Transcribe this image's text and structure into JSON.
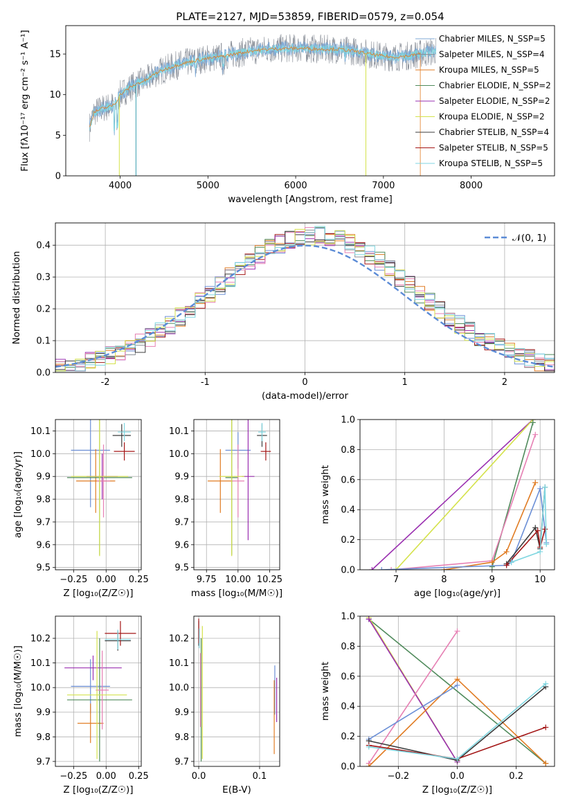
{
  "figure": {
    "title": "PLATE=2127, MJD=53859, FIBERID=0579, z=0.054"
  },
  "model_colors": {
    "Chabrier MILES": "#6b8fd6",
    "Salpeter MILES": "#8a8f98",
    "Kroupa MILES": "#e07b22",
    "Chabrier ELODIE": "#4f8a5b",
    "Salpeter ELODIE": "#9a2fb0",
    "Kroupa ELODIE": "#d4e24a",
    "Chabrier STELIB": "#3b3b3b",
    "Salpeter STELIB": "#a31515",
    "Kroupa STELIB": "#7fd6e0",
    "Pink": "#e67fb3"
  },
  "chart_data": [
    {
      "id": "spectrum",
      "type": "line",
      "title": "PLATE=2127, MJD=53859, FIBERID=0579, z=0.054",
      "xlabel": "wavelength [Angstrom, rest frame]",
      "ylabel": "Flux [fλ10⁻¹⁷ erg cm⁻² s⁻¹ A⁻¹]",
      "xlim": [
        3380,
        8950
      ],
      "ylim": [
        0,
        18.5
      ],
      "xticks": [
        4000,
        5000,
        6000,
        7000,
        8000
      ],
      "yticks": [
        0,
        5,
        10,
        15
      ],
      "grid": false,
      "legend_position": "right",
      "series": [
        {
          "name": "Chabrier MILES, N_SSP=5",
          "color": "#7fa9d6"
        },
        {
          "name": "Salpeter MILES, N_SSP=4",
          "color": "#8a8f98"
        },
        {
          "name": "Kroupa MILES, N_SSP=5",
          "color": "#e07b22"
        },
        {
          "name": "Chabrier ELODIE, N_SSP=2",
          "color": "#4f8a5b"
        },
        {
          "name": "Salpeter ELODIE, N_SSP=2",
          "color": "#9a2fb0"
        },
        {
          "name": "Kroupa ELODIE, N_SSP=2",
          "color": "#d4e24a"
        },
        {
          "name": "Chabrier STELIB, N_SSP=4",
          "color": "#3b3b3b"
        },
        {
          "name": "Salpeter STELIB, N_SSP=5",
          "color": "#a31515"
        },
        {
          "name": "Kroupa STELIB, N_SSP=5",
          "color": "#7fd6e0"
        }
      ],
      "continuum": {
        "x": [
          3650,
          3700,
          3800,
          3900,
          3950,
          4000,
          4100,
          4200,
          4300,
          4400,
          4500,
          4700,
          4900,
          5100,
          5300,
          5500,
          5700,
          5900,
          6100,
          6300,
          6500,
          6700,
          6900,
          7100,
          7300,
          7500,
          7600
        ],
        "y": [
          6.0,
          7.8,
          8.3,
          8.6,
          9.0,
          10.0,
          10.8,
          11.4,
          11.8,
          12.6,
          13.1,
          13.8,
          14.3,
          14.6,
          15.0,
          15.4,
          15.6,
          15.7,
          15.7,
          15.6,
          15.6,
          15.3,
          14.9,
          14.6,
          14.8,
          15.2,
          15.4
        ]
      }
    },
    {
      "id": "residual-hist",
      "type": "histogram",
      "xlabel": "(data-model)/error",
      "ylabel": "Normed distribution",
      "xlim": [
        -2.5,
        2.5
      ],
      "ylim": [
        0,
        0.47
      ],
      "xticks": [
        -2,
        -1,
        0,
        1,
        2
      ],
      "yticks": [
        0.0,
        0.1,
        0.2,
        0.3,
        0.4
      ],
      "grid": true,
      "legend_position": "top-right",
      "legend": [
        "𝒩(0, 1)"
      ],
      "bin_width": 0.1,
      "bin_range": [
        -2.5,
        2.5
      ],
      "histogram_colors": [
        "#6b8fd6",
        "#e07b22",
        "#4f8a5b",
        "#a31515",
        "#9a2fb0",
        "#8a8f98",
        "#e67fb3",
        "#3b3b3b",
        "#d4e24a",
        "#7fd6e0"
      ],
      "reference_curve": {
        "name": "𝒩(0, 1)",
        "mean": 0,
        "sigma": 1,
        "style": "dashed",
        "color": "#5b8bd6"
      }
    },
    {
      "id": "age-vs-Z",
      "type": "errorbar",
      "xlabel": "Z [log₁₀(Z/Z☉)]",
      "ylabel": "age  [log₁₀(age/yr)]",
      "xlim": [
        -0.39,
        0.27
      ],
      "ylim": [
        9.49,
        10.15
      ],
      "xticks": [
        -0.25,
        0.0,
        0.25
      ],
      "xticklabels": [
        "−0.25",
        "0.00",
        "0.25"
      ],
      "yticks": [
        9.5,
        9.6,
        9.7,
        9.8,
        9.9,
        10.0,
        10.1
      ],
      "grid": true,
      "points": [
        {
          "color": "#6b8fd6",
          "x": -0.12,
          "xerr": 0.15,
          "y": 10.015,
          "yerr": 0.25
        },
        {
          "color": "#e07b22",
          "x": -0.08,
          "xerr": 0.15,
          "y": 9.88,
          "yerr": 0.14
        },
        {
          "color": "#4f8a5b",
          "x": -0.05,
          "xerr": 0.25,
          "y": 9.895,
          "yerr": 0.34
        },
        {
          "color": "#9a2fb0",
          "x": -0.03,
          "xerr": 0.12,
          "y": 9.9,
          "yerr": 0.1
        },
        {
          "color": "#e67fb3",
          "x": -0.02,
          "xerr": 0.05,
          "y": 9.88,
          "yerr": 0.16
        },
        {
          "color": "#d4e24a",
          "x": -0.05,
          "xerr": 0.22,
          "y": 9.9,
          "yerr": 0.35
        },
        {
          "color": "#3b3b3b",
          "x": 0.12,
          "xerr": 0.07,
          "y": 10.08,
          "yerr": 0.05
        },
        {
          "color": "#a31515",
          "x": 0.14,
          "xerr": 0.08,
          "y": 10.01,
          "yerr": 0.04
        },
        {
          "color": "#7fd6e0",
          "x": 0.14,
          "xerr": 0.05,
          "y": 10.095,
          "yerr": 0.04
        }
      ]
    },
    {
      "id": "age-vs-mass",
      "type": "errorbar",
      "xlabel": "mass [log₁₀(M/M☉)]",
      "ylabel": "",
      "xlim": [
        9.65,
        10.33
      ],
      "ylim": [
        9.49,
        10.15
      ],
      "xticks": [
        9.75,
        10.0,
        10.25
      ],
      "xticklabels": [
        "9.75",
        "10.00",
        "10.25"
      ],
      "yticks": [
        9.5,
        9.6,
        9.7,
        9.8,
        9.9,
        10.0,
        10.1
      ],
      "grid": true,
      "points": [
        {
          "color": "#6b8fd6",
          "x": 10.0,
          "xerr": 0.1,
          "y": 10.015,
          "yerr": 0.08
        },
        {
          "color": "#e07b22",
          "x": 9.86,
          "xerr": 0.1,
          "y": 9.88,
          "yerr": 0.14
        },
        {
          "color": "#4f8a5b",
          "x": 9.95,
          "xerr": 0.05,
          "y": 9.895,
          "yerr": 0.34
        },
        {
          "color": "#9a2fb0",
          "x": 10.08,
          "xerr": 0.05,
          "y": 9.9,
          "yerr": 0.28
        },
        {
          "color": "#e67fb3",
          "x": 10.0,
          "xerr": 0.05,
          "y": 9.88,
          "yerr": 0.16
        },
        {
          "color": "#d4e24a",
          "x": 9.95,
          "xerr": 0.1,
          "y": 9.9,
          "yerr": 0.35
        },
        {
          "color": "#3b3b3b",
          "x": 10.19,
          "xerr": 0.04,
          "y": 10.08,
          "yerr": 0.05
        },
        {
          "color": "#a31515",
          "x": 10.22,
          "xerr": 0.04,
          "y": 10.01,
          "yerr": 0.04
        },
        {
          "color": "#7fd6e0",
          "x": 10.19,
          "xerr": 0.03,
          "y": 10.095,
          "yerr": 0.04
        }
      ]
    },
    {
      "id": "weight-vs-age",
      "type": "line",
      "xlabel": "age  [log₁₀(age/yr)]",
      "ylabel": "mass weight",
      "xlim": [
        6.25,
        10.3
      ],
      "ylim": [
        0,
        1.0
      ],
      "xticks": [
        7,
        8,
        9,
        10
      ],
      "yticks": [
        0.0,
        0.2,
        0.4,
        0.6,
        0.8,
        1.0
      ],
      "grid": true,
      "series": [
        {
          "color": "#9a2fb0",
          "x": [
            6.5,
            9.85
          ],
          "y": [
            0.0,
            1.0
          ]
        },
        {
          "color": "#d4e24a",
          "x": [
            7.0,
            9.85
          ],
          "y": [
            0.0,
            1.0
          ]
        },
        {
          "color": "#4f8a5b",
          "x": [
            9.0,
            9.85
          ],
          "y": [
            0.02,
            0.98
          ]
        },
        {
          "color": "#e67fb3",
          "x": [
            6.9,
            9.0,
            9.9
          ],
          "y": [
            0.0,
            0.06,
            0.9
          ]
        },
        {
          "color": "#e07b22",
          "x": [
            8.0,
            9.0,
            9.3,
            9.9
          ],
          "y": [
            0.0,
            0.05,
            0.12,
            0.58
          ]
        },
        {
          "color": "#6b8fd6",
          "x": [
            6.7,
            9.3,
            9.4,
            10.0,
            10.13
          ],
          "y": [
            0.0,
            0.03,
            0.05,
            0.54,
            0.18
          ]
        },
        {
          "color": "#3b3b3b",
          "x": [
            9.3,
            9.9,
            10.0,
            10.1
          ],
          "y": [
            0.04,
            0.28,
            0.14,
            0.55
          ]
        },
        {
          "color": "#a31515",
          "x": [
            9.3,
            9.95,
            10.0,
            10.1
          ],
          "y": [
            0.03,
            0.26,
            0.15,
            0.27
          ]
        },
        {
          "color": "#7fd6e0",
          "x": [
            9.4,
            10.0,
            10.1,
            10.13
          ],
          "y": [
            0.05,
            0.12,
            0.55,
            0.17
          ]
        }
      ]
    },
    {
      "id": "mass-vs-Z",
      "type": "errorbar",
      "xlabel": "Z [log₁₀(Z/Z☉)]",
      "ylabel": "mass [log₁₀(M/M☉)]",
      "xlim": [
        -0.39,
        0.27
      ],
      "ylim": [
        9.68,
        10.29
      ],
      "xticks": [
        -0.25,
        0.0,
        0.25
      ],
      "xticklabels": [
        "−0.25",
        "0.00",
        "0.25"
      ],
      "yticks": [
        9.7,
        9.8,
        9.9,
        10.0,
        10.1,
        10.2
      ],
      "grid": true,
      "points": [
        {
          "color": "#6b8fd6",
          "x": -0.12,
          "xerr": 0.15,
          "y": 10.005,
          "yerr": 0.11
        },
        {
          "color": "#e07b22",
          "x": -0.12,
          "xerr": 0.1,
          "y": 9.855,
          "yerr": 0.08
        },
        {
          "color": "#4f8a5b",
          "x": -0.05,
          "xerr": 0.25,
          "y": 9.95,
          "yerr": 0.25
        },
        {
          "color": "#9a2fb0",
          "x": -0.1,
          "xerr": 0.22,
          "y": 10.08,
          "yerr": 0.05
        },
        {
          "color": "#e67fb3",
          "x": -0.03,
          "xerr": 0.05,
          "y": 9.99,
          "yerr": 0.16
        },
        {
          "color": "#d4e24a",
          "x": -0.07,
          "xerr": 0.23,
          "y": 9.97,
          "yerr": 0.26
        },
        {
          "color": "#3b3b3b",
          "x": 0.09,
          "xerr": 0.1,
          "y": 10.19,
          "yerr": 0.04
        },
        {
          "color": "#a31515",
          "x": 0.11,
          "xerr": 0.12,
          "y": 10.22,
          "yerr": 0.05
        },
        {
          "color": "#7fd6e0",
          "x": 0.09,
          "xerr": 0.1,
          "y": 10.195,
          "yerr": 0.04
        }
      ]
    },
    {
      "id": "mass-vs-ebv",
      "type": "errorbar",
      "xlabel": "E(B-V)",
      "ylabel": "",
      "xlim": [
        -0.008,
        0.133
      ],
      "ylim": [
        9.68,
        10.29
      ],
      "xticks": [
        0.0,
        0.1
      ],
      "xticklabels": [
        "0.0",
        "0.1"
      ],
      "yticks": [
        9.7,
        9.8,
        9.9,
        10.0,
        10.1,
        10.2
      ],
      "grid": true,
      "points": [
        {
          "color": "#6b8fd6",
          "x": 0.125,
          "xerr": 0.0,
          "y": 9.99,
          "yerr": 0.1
        },
        {
          "color": "#e07b22",
          "x": 0.124,
          "xerr": 0.0,
          "y": 9.88,
          "yerr": 0.15
        },
        {
          "color": "#4f8a5b",
          "x": 0.004,
          "xerr": 0.0,
          "y": 9.95,
          "yerr": 0.25
        },
        {
          "color": "#9a2fb0",
          "x": 0.128,
          "xerr": 0.0,
          "y": 9.95,
          "yerr": 0.09
        },
        {
          "color": "#e67fb3",
          "x": 0.003,
          "xerr": 0.0,
          "y": 9.99,
          "yerr": 0.15
        },
        {
          "color": "#d4e24a",
          "x": 0.006,
          "xerr": 0.0,
          "y": 9.98,
          "yerr": 0.27
        },
        {
          "color": "#3b3b3b",
          "x": 0.0,
          "xerr": 0.0,
          "y": 10.22,
          "yerr": 0.05
        },
        {
          "color": "#a31515",
          "x": 0.0,
          "xerr": 0.0,
          "y": 10.23,
          "yerr": 0.05
        },
        {
          "color": "#7fd6e0",
          "x": 0.001,
          "xerr": 0.0,
          "y": 10.2,
          "yerr": 0.04
        }
      ]
    },
    {
      "id": "weight-vs-Z",
      "type": "line",
      "xlabel": "Z [log₁₀(Z/Z☉)]",
      "ylabel": "mass weight",
      "xlim": [
        -0.33,
        0.33
      ],
      "ylim": [
        0,
        1.0
      ],
      "xticks": [
        -0.2,
        0.0,
        0.2
      ],
      "xticklabels": [
        "−0.2",
        "0.0",
        "0.2"
      ],
      "yticks": [
        0.0,
        0.2,
        0.4,
        0.6,
        0.8,
        1.0
      ],
      "grid": true,
      "series": [
        {
          "color": "#4f8a5b",
          "x": [
            -0.3,
            0.3
          ],
          "y": [
            0.98,
            0.02
          ]
        },
        {
          "color": "#d4e24a",
          "x": [
            -0.3,
            0.0
          ],
          "y": [
            0.99,
            0.03
          ]
        },
        {
          "color": "#9a2fb0",
          "x": [
            -0.3,
            0.0
          ],
          "y": [
            0.98,
            0.03
          ]
        },
        {
          "color": "#e67fb3",
          "x": [
            -0.3,
            0.0
          ],
          "y": [
            0.02,
            0.9
          ]
        },
        {
          "color": "#e07b22",
          "x": [
            -0.3,
            0.0,
            0.3
          ],
          "y": [
            0.0,
            0.58,
            0.02
          ]
        },
        {
          "color": "#6b8fd6",
          "x": [
            -0.3,
            0.0
          ],
          "y": [
            0.18,
            0.54
          ]
        },
        {
          "color": "#3b3b3b",
          "x": [
            -0.3,
            0.0,
            0.3
          ],
          "y": [
            0.17,
            0.04,
            0.53
          ]
        },
        {
          "color": "#a31515",
          "x": [
            -0.3,
            0.0,
            0.3
          ],
          "y": [
            0.14,
            0.05,
            0.26
          ]
        },
        {
          "color": "#7fd6e0",
          "x": [
            -0.3,
            0.0,
            0.3
          ],
          "y": [
            0.13,
            0.05,
            0.55
          ]
        }
      ]
    }
  ]
}
